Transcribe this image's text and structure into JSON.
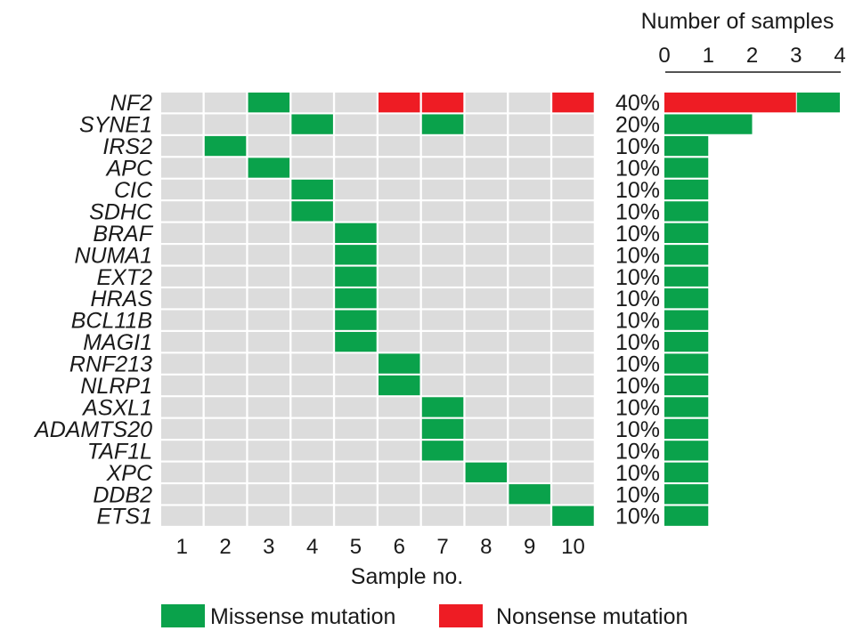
{
  "chart_data": {
    "type": "heatmap",
    "xlabel": "Sample no.",
    "genes": [
      "NF2",
      "SYNE1",
      "IRS2",
      "APC",
      "CIC",
      "SDHC",
      "BRAF",
      "NUMA1",
      "EXT2",
      "HRAS",
      "BCL11B",
      "MAGI1",
      "RNF213",
      "NLRP1",
      "ASXL1",
      "ADAMTS20",
      "TAF1L",
      "XPC",
      "DDB2",
      "ETS1"
    ],
    "samples": [
      "1",
      "2",
      "3",
      "4",
      "5",
      "6",
      "7",
      "8",
      "9",
      "10"
    ],
    "mutations": [
      {
        "gene": "NF2",
        "sample": 3,
        "type": "missense"
      },
      {
        "gene": "NF2",
        "sample": 6,
        "type": "nonsense"
      },
      {
        "gene": "NF2",
        "sample": 7,
        "type": "nonsense"
      },
      {
        "gene": "NF2",
        "sample": 10,
        "type": "nonsense"
      },
      {
        "gene": "SYNE1",
        "sample": 4,
        "type": "missense"
      },
      {
        "gene": "SYNE1",
        "sample": 7,
        "type": "missense"
      },
      {
        "gene": "IRS2",
        "sample": 2,
        "type": "missense"
      },
      {
        "gene": "APC",
        "sample": 3,
        "type": "missense"
      },
      {
        "gene": "CIC",
        "sample": 4,
        "type": "missense"
      },
      {
        "gene": "SDHC",
        "sample": 4,
        "type": "missense"
      },
      {
        "gene": "BRAF",
        "sample": 5,
        "type": "missense"
      },
      {
        "gene": "NUMA1",
        "sample": 5,
        "type": "missense"
      },
      {
        "gene": "EXT2",
        "sample": 5,
        "type": "missense"
      },
      {
        "gene": "HRAS",
        "sample": 5,
        "type": "missense"
      },
      {
        "gene": "BCL11B",
        "sample": 5,
        "type": "missense"
      },
      {
        "gene": "MAGI1",
        "sample": 5,
        "type": "missense"
      },
      {
        "gene": "RNF213",
        "sample": 6,
        "type": "missense"
      },
      {
        "gene": "NLRP1",
        "sample": 6,
        "type": "missense"
      },
      {
        "gene": "ASXL1",
        "sample": 7,
        "type": "missense"
      },
      {
        "gene": "ADAMTS20",
        "sample": 7,
        "type": "missense"
      },
      {
        "gene": "TAF1L",
        "sample": 7,
        "type": "missense"
      },
      {
        "gene": "XPC",
        "sample": 8,
        "type": "missense"
      },
      {
        "gene": "DDB2",
        "sample": 9,
        "type": "missense"
      },
      {
        "gene": "ETS1",
        "sample": 10,
        "type": "missense"
      }
    ],
    "percentages": [
      "40%",
      "20%",
      "10%",
      "10%",
      "10%",
      "10%",
      "10%",
      "10%",
      "10%",
      "10%",
      "10%",
      "10%",
      "10%",
      "10%",
      "10%",
      "10%",
      "10%",
      "10%",
      "10%",
      "10%"
    ],
    "bar_chart": {
      "title": "Number of samples",
      "ticks": [
        "0",
        "1",
        "2",
        "3",
        "4"
      ],
      "xlim": [
        0,
        4
      ],
      "series": [
        {
          "name": "Nonsense mutation",
          "values": [
            3,
            0,
            0,
            0,
            0,
            0,
            0,
            0,
            0,
            0,
            0,
            0,
            0,
            0,
            0,
            0,
            0,
            0,
            0,
            0
          ]
        },
        {
          "name": "Missense mutation",
          "values": [
            1,
            2,
            1,
            1,
            1,
            1,
            1,
            1,
            1,
            1,
            1,
            1,
            1,
            1,
            1,
            1,
            1,
            1,
            1,
            1
          ]
        }
      ]
    },
    "legend": [
      {
        "key": "missense",
        "label": "Missense mutation",
        "color": "#0aa24b"
      },
      {
        "key": "nonsense",
        "label": "Nonsense mutation",
        "color": "#ee1c24"
      }
    ],
    "colors": {
      "missense": "#0aa24b",
      "nonsense": "#ee1c24",
      "empty_cell": "#dcdcdc"
    }
  }
}
